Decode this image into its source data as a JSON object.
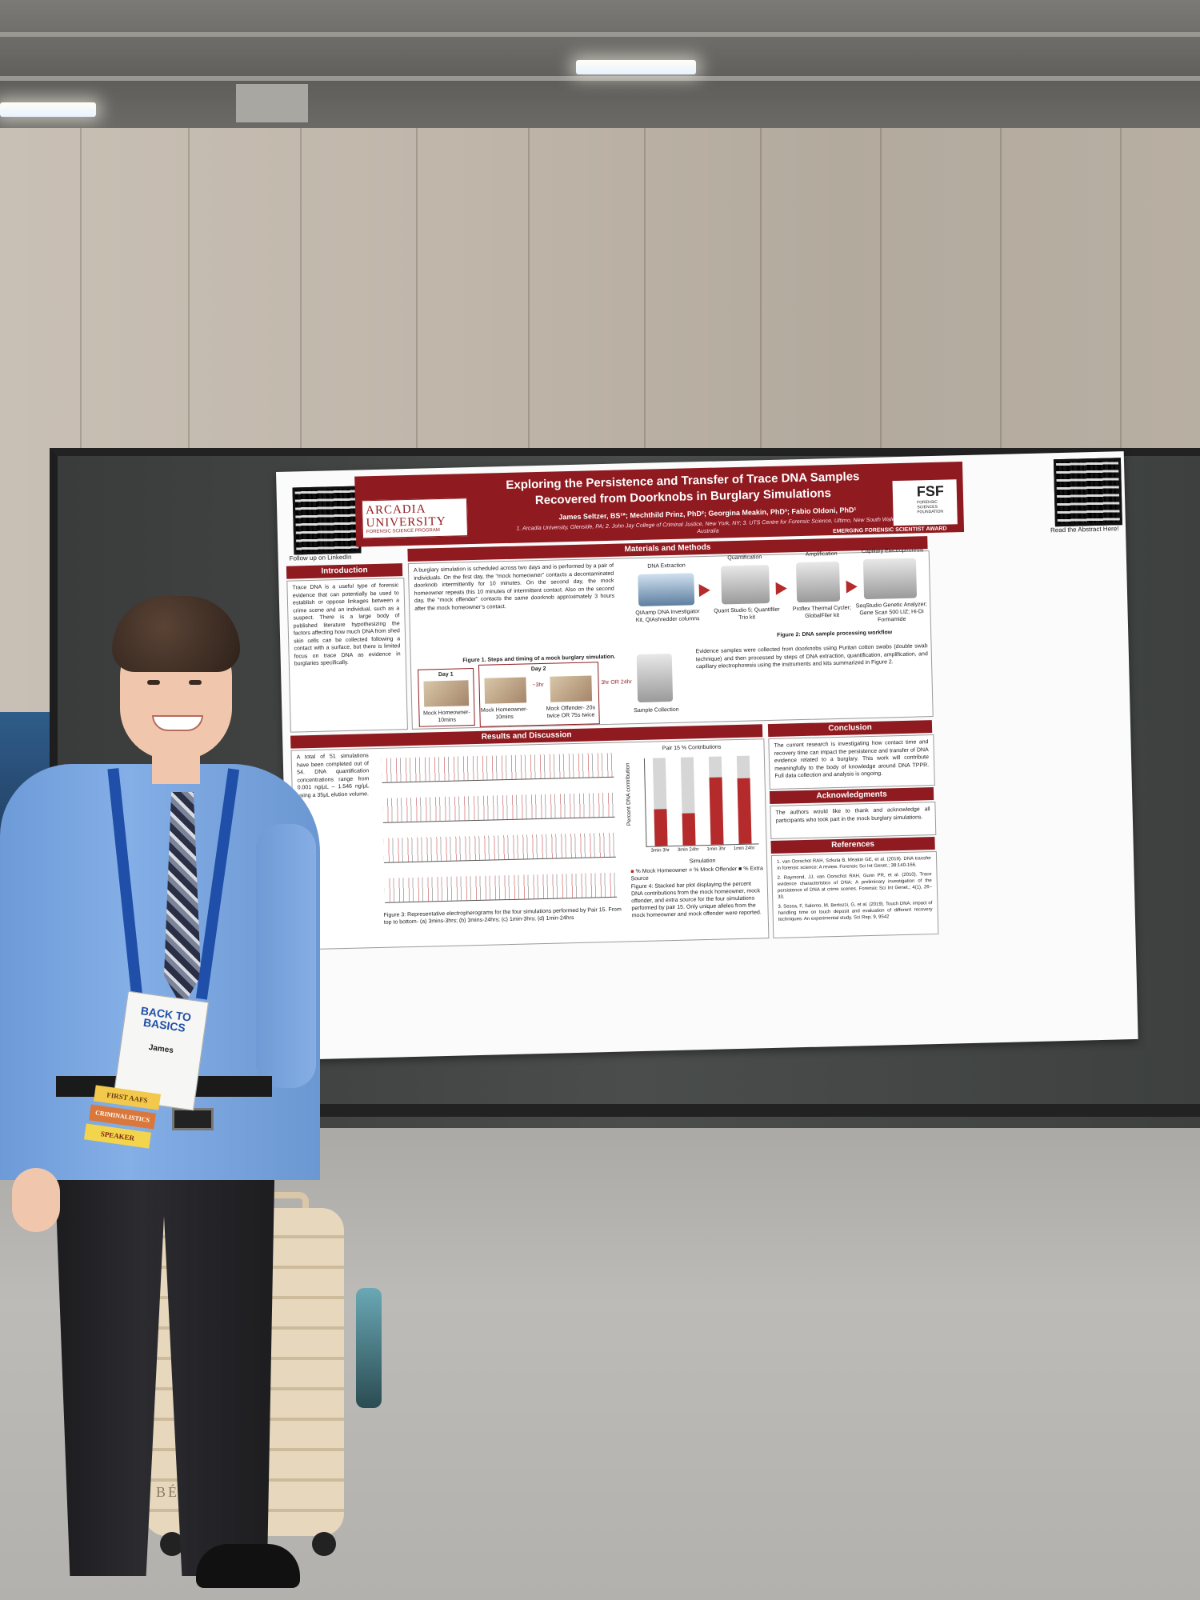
{
  "poster": {
    "title": "Exploring the Persistence and Transfer of Trace DNA Samples Recovered from Doorknobs in Burglary Simulations",
    "authors": "James Seltzer, BS¹*; Mechthild Prinz, PhD²; Georgina Meakin, PhD³; Fabio Oldoni, PhD¹",
    "affiliations": "1. Arcadia University, Glenside, PA; 2. John Jay College of Criminal Justice, New York, NY; 3. UTS Centre for Forensic Science, Ultimo, New South Wales, Australia",
    "qr_left_caption": "Follow up on LinkedIn",
    "qr_right_caption": "Read the Abstract Here!",
    "logo_arcadia": "ARCADIA UNIVERSITY",
    "logo_arcadia_sub": "FORENSIC SCIENCE PROGRAM",
    "logo_fsf": "FSF",
    "logo_fsf_sub": "FORENSIC SCIENCES FOUNDATION",
    "award": "EMERGING FORENSIC SCIENTIST AWARD",
    "sections": {
      "introduction": "Introduction",
      "materials": "Materials and Methods",
      "results": "Results and Discussion",
      "conclusion": "Conclusion",
      "acknowledgments": "Acknowledgments",
      "references": "References"
    },
    "intro_text": "Trace DNA is a useful type of forensic evidence that can potentially be used to establish or oppose linkages between a crime scene and an individual, such as a suspect. There is a large body of published literature hypothesizing the factors affecting how much DNA from shed skin cells can be collected following a contact with a surface, but there is limited focus on trace DNA as evidence in burglaries specifically.",
    "methods_text": "A burglary simulation is scheduled across two days and is performed by a pair of individuals. On the first day, the “mock homeowner” contacts a decontaminated doorknob intermittently for 10 minutes. On the second day, the mock homeowner repeats this 10 minutes of intermittent contact. Also on the second day, the “mock offender” contacts the same doorknob approximately 3 hours after the mock homeowner’s contact.",
    "workflow": [
      "DNA Extraction",
      "Quantification",
      "Amplification",
      "Capillary Electrophoresis"
    ],
    "workflow_kits": [
      "QIAamp DNA Investigator Kit, QIAshredder columns",
      "Quant Studio 5; Quantifiler Trio kit",
      "Proflex Thermal Cycler; GlobalFiler kit",
      "SeqStudio Genetic Analyzer; Gene Scan 500 LIZ; Hi-Di Formamide"
    ],
    "fig1_caption": "Figure 1. Steps and timing of a mock burglary simulation.",
    "fig2_caption": "Figure 2: DNA sample processing workflow",
    "day1": "Day 1",
    "day2": "Day 2",
    "step_labels": [
      "Mock Homeowner- 10mins",
      "Mock Homeowner- 10mins",
      "Mock Offender- 20s twice OR 75s twice",
      "Sample Collection"
    ],
    "timing": [
      "~3hr",
      "3hr OR 24hr"
    ],
    "evidence_text": "Evidence samples were collected from doorknobs using Puritan cotton swabs (double swab technique) and then processed by steps of DNA extraction, quantification, amplification, and capillary electrophoresis using the instruments and kits summarized in Figure 2.",
    "results_text": "A total of 51 simulations have been completed out of 54. DNA quantification concentrations range from 0.001 ng/µL – 1.546 ng/µL using a 35µL elution volume.",
    "fig3_caption": "Figure 3: Representative electropherograms for the four simulations performed by Pair 15. From top to bottom- (a) 3mins-3hrs; (b) 3mins-24hrs; (c) 1min-3hrs; (d) 1min-24hrs",
    "fig4_caption": "Figure 4: Stacked bar plot displaying the percent DNA contributions from the mock homeowner, mock offender, and extra source for the four simulations performed by pair 15. Only unique alleles from the mock homeowner and mock offender were reported.",
    "conclusion_text": "The current research is investigating how contact time and recovery time can impact the persistence and transfer of DNA evidence related to a burglary. This work will contribute meaningfully to the body of knowledge around DNA TPPR. Full data collection and analysis is ongoing.",
    "ack_text": "The authors would like to thank and acknowledge all participants who took part in the mock burglary simulations.",
    "references": [
      "1. van Oorschot RAH, Szkuta B, Meakin GE, et al. (2019). DNA transfer in forensic science: A review. Forensic Sci Int Genet.; 38:140-166.",
      "2. Raymond, JJ, van Oorschot RAH, Gunn PR, et al. (2010). Trace evidence characteristics of DNA: A preliminary investigation of the persistence of DNA at crime scenes. Forensic Sci Int Genet.; 4(1), 26–33.",
      "3. Sessa, F, Salerno, M, Bertozzi, G, et al. (2019). Touch DNA: impact of handling time on touch deposit and evaluation of different recovery techniques: An experimental study. Sci Rep; 9, 9542"
    ]
  },
  "chart_data": {
    "type": "bar",
    "title": "Pair 15 % Contributions",
    "xlabel": "Simulation",
    "ylabel": "Percent DNA contribution",
    "categories": [
      "3min 3hr",
      "3min 24hr",
      "1min 3hr",
      "1min 24hr"
    ],
    "series": [
      {
        "name": "% Mock Homeowner",
        "values": [
          42,
          36,
          76,
          75
        ]
      },
      {
        "name": "% Mock Offender",
        "values": [
          58,
          64,
          24,
          25
        ]
      },
      {
        "name": "% Extra Source",
        "values": [
          0,
          0,
          0,
          0
        ]
      }
    ],
    "ylim": [
      0,
      100
    ],
    "colors": {
      "homeowner": "#b52a2a",
      "offender": "#d6d6d6",
      "extra": "#222222"
    }
  },
  "badge": {
    "event": "BACK TO BASICS",
    "name": "James",
    "ribbons": [
      "FIRST AAFS MEETING",
      "CRIMINALISTICS",
      "SPEAKER"
    ]
  },
  "suitcase_brand": "BÉIS"
}
